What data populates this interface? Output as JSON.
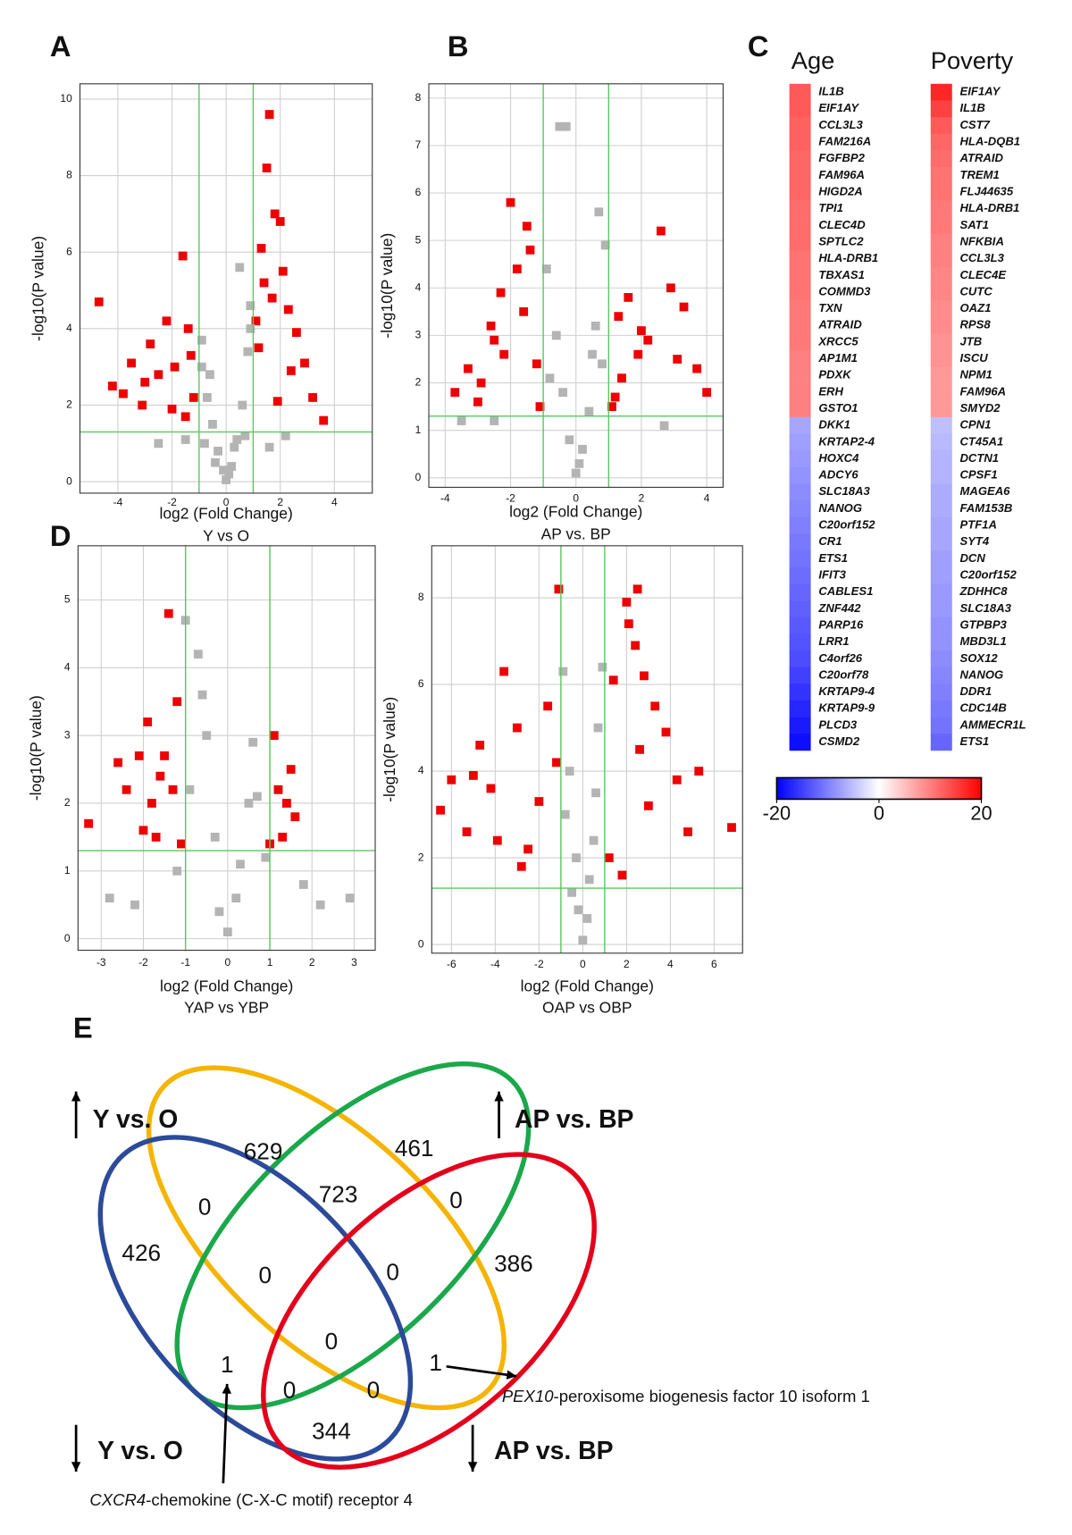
{
  "chart_data": [
    {
      "type": "scatter",
      "panel": "A",
      "x_label": "log2 (Fold Change)",
      "y_label": "-log10(P value)",
      "subtitle": "Y vs O",
      "xlim": [
        -5.4,
        5.4
      ],
      "ylim": [
        -0.3,
        10.4
      ],
      "xticks": [
        -4,
        -2,
        0,
        2,
        4
      ],
      "yticks": [
        0,
        2,
        4,
        6,
        8,
        10
      ],
      "grid": true,
      "vlines": [
        -1,
        1
      ],
      "hline": 1.3,
      "threshold_color": "#5cc85c",
      "series": [
        {
          "color": "#ee0000",
          "x": [
            -4.7,
            -4.2,
            -3.8,
            -3.5,
            -3.1,
            -2.8,
            -2.5,
            -2.2,
            -1.9,
            -1.6,
            -1.4,
            -1.2,
            -1.5,
            -2.0,
            -3.0,
            -1.3,
            1.2,
            1.4,
            1.6,
            1.8,
            2.0,
            2.3,
            2.6,
            2.9,
            3.2,
            3.6,
            1.5,
            1.3,
            1.7,
            2.1,
            1.9,
            2.4,
            1.1
          ],
          "values": [
            4.7,
            2.5,
            2.3,
            3.1,
            2.0,
            3.6,
            2.8,
            4.2,
            3.0,
            5.9,
            4.0,
            2.2,
            1.7,
            1.9,
            2.6,
            3.3,
            3.5,
            5.2,
            9.6,
            7.0,
            6.8,
            4.5,
            3.9,
            3.1,
            2.2,
            1.6,
            8.2,
            6.1,
            4.8,
            5.5,
            2.1,
            2.9,
            4.2
          ]
        },
        {
          "color": "#b4b4b4",
          "x": [
            -0.9,
            -0.7,
            -0.5,
            -0.3,
            -0.1,
            0,
            0.2,
            0.4,
            0.6,
            0.8,
            0.9,
            -0.8,
            0.7,
            -0.4,
            0.3,
            0.5,
            -0.6,
            0.1,
            -1.5,
            1.6,
            -2.5,
            2.2,
            0.9,
            -0.9
          ],
          "values": [
            3.0,
            2.2,
            1.5,
            0.8,
            0.3,
            0.05,
            0.4,
            1.1,
            2.0,
            3.4,
            4.6,
            1.0,
            1.2,
            0.5,
            0.9,
            5.6,
            2.8,
            0.2,
            1.1,
            0.9,
            1.0,
            1.2,
            4.0,
            3.7
          ]
        }
      ]
    },
    {
      "type": "scatter",
      "panel": "B",
      "x_label": "log2 (Fold Change)",
      "y_label": "-log10(P value)",
      "subtitle": "AP vs. BP",
      "xlim": [
        -4.5,
        4.5
      ],
      "ylim": [
        -0.2,
        8.3
      ],
      "xticks": [
        -4,
        -2,
        0,
        2,
        4
      ],
      "yticks": [
        0,
        1,
        2,
        3,
        4,
        5,
        6,
        7,
        8
      ],
      "grid": true,
      "vlines": [
        -1,
        1
      ],
      "hline": 1.3,
      "threshold_color": "#5cc85c",
      "series": [
        {
          "color": "#ee0000",
          "x": [
            -3.7,
            -3.3,
            -2.9,
            -2.6,
            -2.3,
            -2.0,
            -1.8,
            -1.5,
            -1.2,
            -1.1,
            -2.2,
            -1.6,
            -3.0,
            -1.4,
            -2.5,
            1.1,
            1.3,
            1.6,
            1.9,
            2.2,
            2.6,
            2.9,
            3.3,
            3.7,
            4.0,
            1.4,
            2.0,
            3.1,
            1.2
          ],
          "values": [
            1.8,
            2.3,
            2.0,
            3.2,
            3.9,
            5.8,
            4.4,
            5.3,
            2.4,
            1.5,
            2.6,
            3.5,
            1.6,
            4.8,
            2.9,
            1.5,
            3.4,
            3.8,
            2.6,
            2.9,
            5.2,
            4.0,
            3.6,
            2.3,
            1.8,
            2.1,
            3.1,
            2.5,
            1.7
          ]
        },
        {
          "color": "#b4b4b4",
          "x": [
            -0.9,
            -0.6,
            -0.4,
            -0.2,
            0,
            0.2,
            0.4,
            0.6,
            0.9,
            -0.5,
            0.5,
            0.1,
            -0.8,
            0.8,
            -2.5,
            2.7,
            -3.5,
            -0.3,
            0.7
          ],
          "values": [
            4.4,
            3.0,
            1.8,
            0.8,
            0.1,
            0.6,
            1.4,
            3.2,
            4.9,
            7.4,
            2.6,
            0.3,
            2.1,
            2.4,
            1.2,
            1.1,
            1.2,
            7.4,
            5.6
          ]
        }
      ]
    },
    {
      "type": "scatter",
      "panel": "D",
      "x_label": "log2 (Fold Change)",
      "y_label": "-log10(P value)",
      "subtitle": "YAP vs YBP",
      "xlim": [
        -3.55,
        3.5
      ],
      "ylim": [
        -0.17,
        5.8
      ],
      "xticks": [
        -3,
        -2,
        -1,
        0,
        1,
        2,
        3
      ],
      "yticks": [
        0,
        1,
        2,
        3,
        4,
        5
      ],
      "grid": true,
      "vlines": [
        -1,
        1
      ],
      "hline": 1.3,
      "threshold_color": "#5cc85c",
      "series": [
        {
          "color": "#ee0000",
          "x": [
            -3.3,
            -2.6,
            -2.4,
            -2.1,
            -1.8,
            -1.6,
            -1.4,
            -1.2,
            -1.1,
            -2.0,
            -1.5,
            -1.3,
            -1.7,
            -1.9,
            1.1,
            1.2,
            1.4,
            1.6,
            1.3,
            1.5,
            1.0
          ],
          "values": [
            1.7,
            2.6,
            2.2,
            2.7,
            2.0,
            2.4,
            4.8,
            3.5,
            1.4,
            1.6,
            2.7,
            2.2,
            1.5,
            3.2,
            3.0,
            2.2,
            2.0,
            1.8,
            1.5,
            2.5,
            1.4
          ]
        },
        {
          "color": "#b4b4b4",
          "x": [
            -2.8,
            -2.2,
            -1.0,
            -0.9,
            -0.7,
            -0.5,
            -0.3,
            0,
            0.3,
            0.5,
            0.7,
            0.9,
            -0.6,
            0.2,
            1.8,
            2.2,
            2.9,
            -1.2,
            0.6,
            -0.2
          ],
          "values": [
            0.6,
            0.5,
            4.7,
            2.2,
            4.2,
            3.0,
            1.5,
            0.1,
            1.1,
            2.0,
            2.1,
            1.2,
            3.6,
            0.6,
            0.8,
            0.5,
            0.6,
            1.0,
            2.9,
            0.4
          ]
        }
      ]
    },
    {
      "type": "scatter",
      "x_label": "log2 (Fold Change)",
      "y_label": "-log10(P value)",
      "subtitle": "OAP vs OBP",
      "xlim": [
        -6.9,
        7.3
      ],
      "ylim": [
        -0.2,
        9.2
      ],
      "xticks": [
        -6,
        -4,
        -2,
        0,
        2,
        4,
        6
      ],
      "yticks": [
        0,
        2,
        4,
        6,
        8
      ],
      "grid": true,
      "vlines": [
        -1,
        1
      ],
      "hline": 1.3,
      "threshold_color": "#5cc85c",
      "series": [
        {
          "color": "#ee0000",
          "x": [
            -6.5,
            -6.0,
            -5.3,
            -4.7,
            -4.2,
            -3.6,
            -3.0,
            -2.5,
            -2.0,
            -1.6,
            -1.2,
            -2.8,
            -3.9,
            -5.0,
            -1.1,
            1.2,
            2.5,
            2.0,
            2.4,
            2.8,
            3.3,
            3.8,
            4.3,
            4.8,
            5.3,
            6.8,
            1.8,
            2.6,
            3.0,
            1.4,
            2.1
          ],
          "values": [
            3.1,
            3.8,
            2.6,
            4.6,
            3.6,
            6.3,
            5.0,
            2.2,
            3.3,
            5.5,
            4.2,
            1.8,
            2.4,
            3.9,
            8.2,
            2.0,
            8.2,
            7.9,
            6.9,
            6.2,
            5.5,
            4.9,
            3.8,
            2.6,
            4.0,
            2.7,
            1.6,
            4.5,
            3.2,
            6.1,
            7.4
          ]
        },
        {
          "color": "#b4b4b4",
          "x": [
            -0.9,
            -0.6,
            -0.3,
            0,
            0.3,
            0.6,
            0.9,
            -0.8,
            0.7,
            -0.2,
            0.2,
            -0.5,
            0.5
          ],
          "values": [
            6.3,
            4.0,
            2.0,
            0.1,
            1.5,
            3.5,
            6.4,
            3.0,
            5.0,
            0.8,
            0.6,
            1.2,
            2.4
          ]
        }
      ]
    },
    {
      "type": "heatmap",
      "panel": "C",
      "columns": [
        {
          "name": "Age",
          "genes": [
            "IL1B",
            "EIF1AY",
            "CCL3L3",
            "FAM216A",
            "FGFBP2",
            "FAM96A",
            "HIGD2A",
            "TPI1",
            "CLEC4D",
            "SPTLC2",
            "HLA-DRB1",
            "TBXAS1",
            "COMMD3",
            "TXN",
            "ATRAID",
            "XRCC5",
            "AP1M1",
            "PDXK",
            "ERH",
            "GSTO1",
            "DKK1",
            "KRTAP2-4",
            "HOXC4",
            "ADCY6",
            "SLC18A3",
            "NANOG",
            "C20orf152",
            "CR1",
            "ETS1",
            "IFIT3",
            "CABLES1",
            "ZNF442",
            "PARP16",
            "LRR1",
            "C4orf26",
            "C20orf78",
            "KRTAP9-4",
            "KRTAP9-9",
            "PLCD3",
            "CSMD2"
          ],
          "values": [
            13,
            13,
            12.5,
            12.5,
            12,
            12,
            12,
            11.5,
            11.5,
            11.5,
            11,
            11,
            11,
            10.5,
            10.5,
            10.5,
            10,
            10,
            10,
            10,
            -7,
            -7.5,
            -8,
            -8.5,
            -9,
            -9.5,
            -10,
            -10.5,
            -11,
            -11.5,
            -12,
            -12.5,
            -13,
            -13.5,
            -14,
            -15,
            -16,
            -17,
            -18,
            -19
          ]
        },
        {
          "name": "Poverty",
          "genes": [
            "EIF1AY",
            "IL1B",
            "CST7",
            "HLA-DQB1",
            "ATRAID",
            "TREM1",
            "FLJ44635",
            "HLA-DRB1",
            "SAT1",
            "NFKBIA",
            "CCL3L3",
            "CLEC4E",
            "CUTC",
            "OAZ1",
            "RPS8",
            "JTB",
            "ISCU",
            "NPM1",
            "FAM96A",
            "SMYD2",
            "CPN1",
            "CT45A1",
            "DCTN1",
            "CPSF1",
            "MAGEA6",
            "FAM153B",
            "PTF1A",
            "SYT4",
            "DCN",
            "C20orf152",
            "ZDHHC8",
            "SLC18A3",
            "GTPBP3",
            "MBD3L1",
            "SOX12",
            "NANOG",
            "DDR1",
            "CDC14B",
            "AMMECR1L",
            "ETS1"
          ],
          "values": [
            17,
            15,
            13,
            12,
            11.5,
            11,
            11,
            10.5,
            10.5,
            10,
            10,
            9.5,
            9.5,
            9,
            9,
            8.5,
            8.5,
            8,
            8,
            8,
            -5,
            -5.5,
            -6,
            -6,
            -6.5,
            -6.5,
            -7,
            -7,
            -7.5,
            -7.5,
            -8,
            -8,
            -8.5,
            -8.5,
            -9,
            -9.5,
            -10,
            -10.5,
            -11,
            -12
          ]
        }
      ],
      "colorbar": {
        "lim": [
          -20,
          20
        ],
        "ticks": [
          -20,
          0,
          20
        ],
        "colors": [
          "#0000ff",
          "#ffffff",
          "#ff0000"
        ]
      }
    },
    {
      "type": "venn",
      "panel": "E",
      "sets": [
        {
          "name": "Y vs. O",
          "direction": "up",
          "color": "#f5b400"
        },
        {
          "name": "AP vs. BP",
          "direction": "up",
          "color": "#1aa84a"
        },
        {
          "name": "Y vs. O",
          "direction": "down",
          "color": "#2b4a9a"
        },
        {
          "name": "AP vs. BP",
          "direction": "down",
          "color": "#e4001b"
        }
      ],
      "values": [
        629,
        461,
        723,
        0,
        0,
        426,
        386,
        0,
        0,
        0,
        1,
        1,
        0,
        0,
        344
      ],
      "annotations": [
        {
          "gene": "PEX10",
          "text": "-peroxisome biogenesis factor 10 isoform 1"
        },
        {
          "gene": "CXCR4",
          "text": "-chemokine (C-X-C motif) receptor 4"
        }
      ]
    }
  ]
}
